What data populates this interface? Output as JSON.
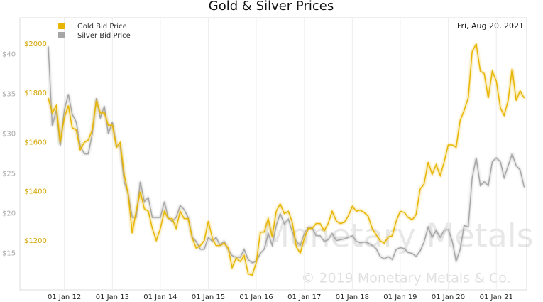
{
  "chart_data": {
    "type": "line",
    "title": "Gold & Silver Prices",
    "annotations": {
      "date": "Fri, Aug 20, 2021",
      "watermark": "Monetary Metals",
      "copyright": "© 2019 Monetary Metals & Co."
    },
    "x": [
      "2011-09",
      "2011-10",
      "2011-11",
      "2011-12",
      "2012-01",
      "2012-02",
      "2012-03",
      "2012-04",
      "2012-05",
      "2012-06",
      "2012-07",
      "2012-08",
      "2012-09",
      "2012-10",
      "2012-11",
      "2012-12",
      "2013-01",
      "2013-02",
      "2013-03",
      "2013-04",
      "2013-05",
      "2013-06",
      "2013-07",
      "2013-08",
      "2013-09",
      "2013-10",
      "2013-11",
      "2013-12",
      "2014-01",
      "2014-02",
      "2014-03",
      "2014-04",
      "2014-05",
      "2014-06",
      "2014-07",
      "2014-08",
      "2014-09",
      "2014-10",
      "2014-11",
      "2014-12",
      "2015-01",
      "2015-02",
      "2015-03",
      "2015-04",
      "2015-05",
      "2015-06",
      "2015-07",
      "2015-08",
      "2015-09",
      "2015-10",
      "2015-11",
      "2015-12",
      "2016-01",
      "2016-02",
      "2016-03",
      "2016-04",
      "2016-05",
      "2016-06",
      "2016-07",
      "2016-08",
      "2016-09",
      "2016-10",
      "2016-11",
      "2016-12",
      "2017-01",
      "2017-02",
      "2017-03",
      "2017-04",
      "2017-05",
      "2017-06",
      "2017-07",
      "2017-08",
      "2017-09",
      "2017-10",
      "2017-11",
      "2017-12",
      "2018-01",
      "2018-02",
      "2018-03",
      "2018-04",
      "2018-05",
      "2018-06",
      "2018-07",
      "2018-08",
      "2018-09",
      "2018-10",
      "2018-11",
      "2018-12",
      "2019-01",
      "2019-02",
      "2019-03",
      "2019-04",
      "2019-05",
      "2019-06",
      "2019-07",
      "2019-08",
      "2019-09",
      "2019-10",
      "2019-11",
      "2019-12",
      "2020-01",
      "2020-02",
      "2020-03",
      "2020-04",
      "2020-05",
      "2020-06",
      "2020-07",
      "2020-08",
      "2020-09",
      "2020-10",
      "2020-11",
      "2020-12",
      "2021-01",
      "2021-02",
      "2021-03",
      "2021-04",
      "2021-05",
      "2021-06",
      "2021-07",
      "2021-08"
    ],
    "series": [
      {
        "name": "Silver Bid Price",
        "color": "#a6a6a6",
        "axis": "y2",
        "values": [
          41,
          31,
          33,
          28.5,
          33,
          35,
          32.5,
          31.5,
          28.5,
          27.5,
          27.5,
          30,
          34.5,
          32,
          33.5,
          30,
          31.5,
          28.5,
          28.5,
          24,
          22.5,
          19.5,
          19.5,
          24,
          21.5,
          22,
          19.5,
          19.5,
          19.5,
          21.5,
          19.5,
          19,
          19.5,
          21,
          20.5,
          19.5,
          17,
          16.5,
          15.5,
          15.5,
          17,
          16.5,
          17,
          16,
          16.5,
          15.5,
          14.7,
          14.5,
          14.5,
          15.5,
          14.2,
          13.8,
          14,
          15,
          15.5,
          17.5,
          16,
          18.5,
          20,
          18.7,
          19.3,
          17.7,
          16.5,
          16,
          17.5,
          18.3,
          18.2,
          17.2,
          17.2,
          16.5,
          16.7,
          17.5,
          16.6,
          16.7,
          16.8,
          17,
          17.2,
          16.5,
          16.3,
          16.4,
          16.3,
          16,
          15.6,
          14.6,
          14.3,
          14.6,
          14.2,
          15.5,
          15.7,
          15.6,
          15.1,
          15,
          14.6,
          15.3,
          16.4,
          18.3,
          17,
          17.9,
          17,
          17.9,
          18,
          16.5,
          14,
          15.5,
          18.5,
          18.3,
          24.5,
          27,
          23.5,
          24,
          23.5,
          26.5,
          27,
          26.5,
          24.5,
          26,
          27.5,
          26,
          25.5,
          23.3
        ]
      },
      {
        "name": "Gold Bid Price",
        "color": "#e8b500",
        "values": [
          1780,
          1720,
          1750,
          1600,
          1700,
          1750,
          1660,
          1650,
          1570,
          1600,
          1610,
          1650,
          1770,
          1720,
          1720,
          1670,
          1670,
          1580,
          1600,
          1470,
          1390,
          1230,
          1320,
          1400,
          1330,
          1320,
          1250,
          1200,
          1250,
          1320,
          1290,
          1290,
          1250,
          1320,
          1290,
          1290,
          1210,
          1170,
          1180,
          1200,
          1280,
          1210,
          1180,
          1180,
          1190,
          1170,
          1090,
          1130,
          1115,
          1140,
          1065,
          1060,
          1110,
          1235,
          1235,
          1290,
          1215,
          1320,
          1350,
          1310,
          1320,
          1275,
          1175,
          1150,
          1210,
          1250,
          1250,
          1270,
          1270,
          1240,
          1270,
          1320,
          1280,
          1270,
          1275,
          1300,
          1340,
          1320,
          1325,
          1315,
          1300,
          1250,
          1225,
          1200,
          1190,
          1215,
          1220,
          1280,
          1320,
          1315,
          1295,
          1285,
          1305,
          1410,
          1430,
          1520,
          1470,
          1510,
          1465,
          1520,
          1590,
          1590,
          1580,
          1690,
          1730,
          1780,
          1970,
          2000,
          1890,
          1880,
          1780,
          1890,
          1850,
          1740,
          1710,
          1770,
          1900,
          1770,
          1810,
          1780
        ]
      }
    ],
    "xlim": [
      "2011-09-01",
      "2021-08-20"
    ],
    "xticks": [
      {
        "value": "2012-01-01",
        "label": "01 Jan 12"
      },
      {
        "value": "2013-01-01",
        "label": "01 Jan 13"
      },
      {
        "value": "2014-01-01",
        "label": "01 Jan 14"
      },
      {
        "value": "2015-01-01",
        "label": "01 Jan 15"
      },
      {
        "value": "2016-01-01",
        "label": "01 Jan 16"
      },
      {
        "value": "2017-01-01",
        "label": "01 Jan 17"
      },
      {
        "value": "2018-01-01",
        "label": "01 Jan 18"
      },
      {
        "value": "2019-01-01",
        "label": "01 Jan 19"
      },
      {
        "value": "2020-01-01",
        "label": "01 Jan 20"
      },
      {
        "value": "2021-01-01",
        "label": "01 Jan 21"
      }
    ],
    "ylim": [
      1000,
      2107
    ],
    "yticks": [
      {
        "value": 1200,
        "label": "$1200"
      },
      {
        "value": 1400,
        "label": "$1400"
      },
      {
        "value": 1600,
        "label": "$1600"
      },
      {
        "value": 1800,
        "label": "$1800"
      },
      {
        "value": 2000,
        "label": "$2000"
      }
    ],
    "y2lim": [
      10.4,
      44.6
    ],
    "y2ticks": [
      {
        "value": 15,
        "label": "$15"
      },
      {
        "value": 20,
        "label": "$20"
      },
      {
        "value": 25,
        "label": "$25"
      },
      {
        "value": 30,
        "label": "$30"
      },
      {
        "value": 35,
        "label": "$35"
      },
      {
        "value": 40,
        "label": "$40"
      }
    ],
    "grid": true,
    "legend": "top-left"
  }
}
